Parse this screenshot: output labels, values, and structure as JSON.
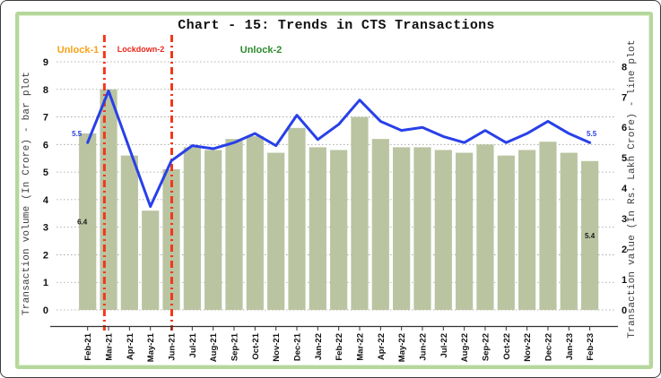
{
  "window": {
    "outer_border_color": "#3c3c3c",
    "frame_border_color": "#b5d79c",
    "background": "#ffffff"
  },
  "chart_data": {
    "type": "bar+line",
    "title": "Chart - 15: Trends in CTS Transactions",
    "categories": [
      "Feb-21",
      "Mar-21",
      "Apr-21",
      "May-21",
      "Jun-21",
      "Jul-21",
      "Aug-21",
      "Sep-21",
      "Oct-21",
      "Nov-21",
      "Dec-21",
      "Jan-22",
      "Feb-22",
      "Mar-22",
      "Apr-22",
      "May-22",
      "Jun-22",
      "Jul-22",
      "Aug-22",
      "Sep-22",
      "Oct-22",
      "Nov-22",
      "Dec-22",
      "Jan-23",
      "Feb-23"
    ],
    "series": [
      {
        "name": "Transaction volume (In Crore)",
        "type": "bar",
        "axis": "left",
        "color": "#bac4a1",
        "values": [
          6.4,
          8.0,
          5.6,
          3.6,
          5.1,
          5.9,
          5.8,
          6.2,
          6.3,
          5.7,
          6.6,
          5.9,
          5.8,
          7.0,
          6.2,
          5.9,
          5.9,
          5.8,
          5.7,
          6.0,
          5.6,
          5.8,
          6.1,
          5.7,
          5.4
        ]
      },
      {
        "name": "Transaction value (In Rs. Lakh Crore)",
        "type": "line",
        "axis": "right",
        "color": "#2840e8",
        "values": [
          5.5,
          7.2,
          5.3,
          3.4,
          4.9,
          5.4,
          5.3,
          5.5,
          5.8,
          5.4,
          6.4,
          5.6,
          6.1,
          6.9,
          6.2,
          5.9,
          6.0,
          5.7,
          5.5,
          5.9,
          5.5,
          5.8,
          6.2,
          5.8,
          5.5
        ]
      }
    ],
    "ylabel_left": "Transaction volume (In Crore) - bar plot",
    "ylabel_right": "Transaction value (In Rs. Lakh Crore) - line plot",
    "xlabel": "",
    "yaxis_left": {
      "min": 0,
      "max": 9,
      "tick_step": 1
    },
    "yaxis_right": {
      "min": 0,
      "max": 8,
      "tick_step": 1
    },
    "grid": "horizontal-dotted",
    "gridline_color": "#9a9a9a",
    "legend": "none",
    "annotations": {
      "phases": [
        {
          "label": "Unlock-1",
          "color": "#f9a21a"
        },
        {
          "label": "Lockdown-2",
          "color": "#e8271c"
        },
        {
          "label": "Unlock-2",
          "color": "#2e8b2e"
        }
      ],
      "dividers": [
        {
          "style": "dash-dot",
          "color": "#f2371b",
          "between": "Feb-21/Mar-21",
          "x_index": 0.8
        },
        {
          "style": "dash-dot",
          "color": "#f2371b",
          "between": "May-21/Jun-21",
          "x_index": 4.02
        }
      ],
      "data_labels": [
        {
          "text": "6.4",
          "series": "bar",
          "category": "Feb-21",
          "color": "#1a1a1a"
        },
        {
          "text": "5.4",
          "series": "bar",
          "category": "Feb-23",
          "color": "#1a1a1a"
        },
        {
          "text": "5.5",
          "series": "line",
          "category": "Feb-21",
          "color": "#2840e8"
        },
        {
          "text": "5.5",
          "series": "line",
          "category": "Feb-23",
          "color": "#2840e8"
        }
      ]
    }
  }
}
